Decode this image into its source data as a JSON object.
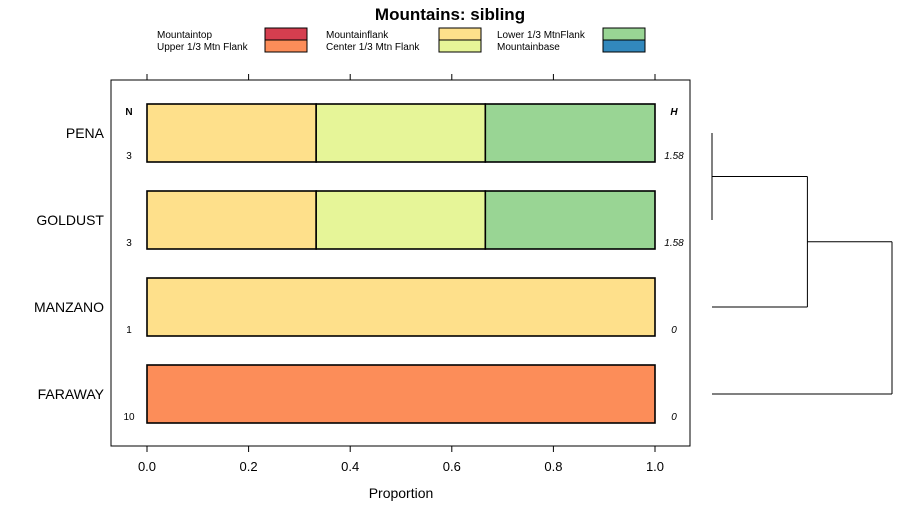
{
  "chart_data": {
    "type": "bar",
    "orientation": "horizontal",
    "stacked": true,
    "title": "Mountains: sibling",
    "xlabel": "Proportion",
    "xlim": [
      0,
      1
    ],
    "xticks": [
      "0.0",
      "0.2",
      "0.4",
      "0.6",
      "0.8",
      "1.0"
    ],
    "xtick_values": [
      0,
      0.2,
      0.4,
      0.6,
      0.8,
      1.0
    ],
    "n_header": "N",
    "h_header": "H",
    "legend": [
      {
        "label": "Mountaintop",
        "color": "#d53e4f"
      },
      {
        "label": "Upper 1/3 Mtn Flank",
        "color": "#fc8d59"
      },
      {
        "label": "Mountainflank",
        "color": "#fee08b"
      },
      {
        "label": "Center 1/3 Mtn Flank",
        "color": "#e6f598"
      },
      {
        "label": "Lower 1/3 MtnFlank",
        "color": "#99d594"
      },
      {
        "label": "Mountainbase",
        "color": "#3288bd"
      }
    ],
    "categories": [
      "PENA",
      "GOLDUST",
      "MANZANO",
      "FARAWAY"
    ],
    "n": [
      "3",
      "3",
      "1",
      "10"
    ],
    "h": [
      "1.58",
      "1.58",
      "0",
      "0"
    ],
    "series": [
      {
        "name": "Mountaintop",
        "values": [
          0,
          0,
          0,
          0
        ]
      },
      {
        "name": "Upper 1/3 Mtn Flank",
        "values": [
          0,
          0,
          0,
          1
        ]
      },
      {
        "name": "Mountainflank",
        "values": [
          0.333,
          0.333,
          1,
          0
        ]
      },
      {
        "name": "Center 1/3 Mtn Flank",
        "values": [
          0.333,
          0.333,
          0,
          0
        ]
      },
      {
        "name": "Lower 1/3 MtnFlank",
        "values": [
          0.334,
          0.334,
          0,
          0
        ]
      },
      {
        "name": "Mountainbase",
        "values": [
          0,
          0,
          0,
          0
        ]
      }
    ],
    "dendrogram": {
      "leaves": [
        "PENA",
        "GOLDUST",
        "MANZANO",
        "FARAWAY"
      ],
      "merges": [
        {
          "members": [
            "PENA",
            "GOLDUST"
          ],
          "height": 0
        },
        {
          "members": [
            "PENA",
            "GOLDUST",
            "MANZANO"
          ],
          "height": 0.53
        },
        {
          "members": [
            "PENA",
            "GOLDUST",
            "MANZANO",
            "FARAWAY"
          ],
          "height": 1
        }
      ]
    }
  }
}
